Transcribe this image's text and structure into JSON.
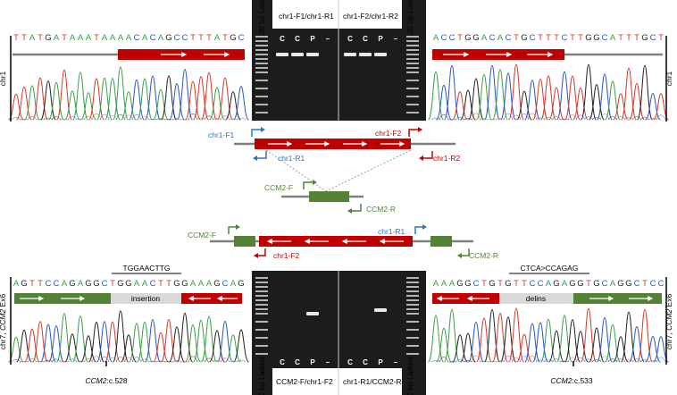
{
  "colors": {
    "red": "#c00000",
    "green": "#538135",
    "blue": "#1f77b4",
    "blue_label": "#2e75b6",
    "red_label": "#c00000",
    "green_label": "#548235",
    "grey": "#808080",
    "gel_bg": "#1a1a1a"
  },
  "top_left": {
    "sequence": "TTATGATAAATAAAACACAGCCTTTATGC",
    "side_label": "chr1"
  },
  "top_right": {
    "sequence": "ACCTGGACACTGCTTTCTTGGCATTTGCT",
    "side_label": "chr1"
  },
  "bottom_left": {
    "sequence": "AGTTCCAGAGGCTGGAACTTGGAAAGCAG",
    "box_label": "insertion",
    "top_annotation": "TGGAACTTG",
    "position_label_gene": "CCM2",
    "position_label_suffix": ":c.528",
    "side_label_prefix": "chr7, ",
    "side_label_gene": "CCM2",
    "side_label_suffix": " Ex6"
  },
  "bottom_right": {
    "sequence": "AAAGGCTGTGTTCCAGAGGTGCAGGCTCC",
    "box_label": "delins",
    "top_annotation": "CTCA>CCAGAG",
    "position_label_gene": "CCM2",
    "position_label_suffix": ":c.533",
    "side_label_prefix": "chr7, ",
    "side_label_gene": "CCM2",
    "side_label_suffix": " Ex6"
  },
  "gel_top": {
    "ladder_label": "100 bp Ladder",
    "group1": "chr1-F1/chr1-R1",
    "group2": "chr1-F2/chr1-R2",
    "lanes": [
      "C",
      "C",
      "P",
      "–",
      "C",
      "C",
      "P",
      "–"
    ]
  },
  "gel_bottom": {
    "ladder_label": "100 bp Ladder",
    "group1": "CCM2-F/chr1-F2",
    "group2": "chr1-R1/CCM2-R",
    "lanes": [
      "C",
      "C",
      "P",
      "–",
      "C",
      "C",
      "P",
      "–"
    ]
  },
  "diagram": {
    "chr1_F1": "chr1-F1",
    "chr1_R1": "chr1-R1",
    "chr1_F2": "chr1-F2",
    "chr1_R2": "chr1-R2",
    "ccm2_F": "CCM2-F",
    "ccm2_R": "CCM2-R",
    "fusion_ccm2_F": "CCM2-F",
    "fusion_chr1_R1": "chr1-R1",
    "fusion_chr1_F2": "chr1-F2",
    "fusion_ccm2_R": "CCM2-R"
  }
}
